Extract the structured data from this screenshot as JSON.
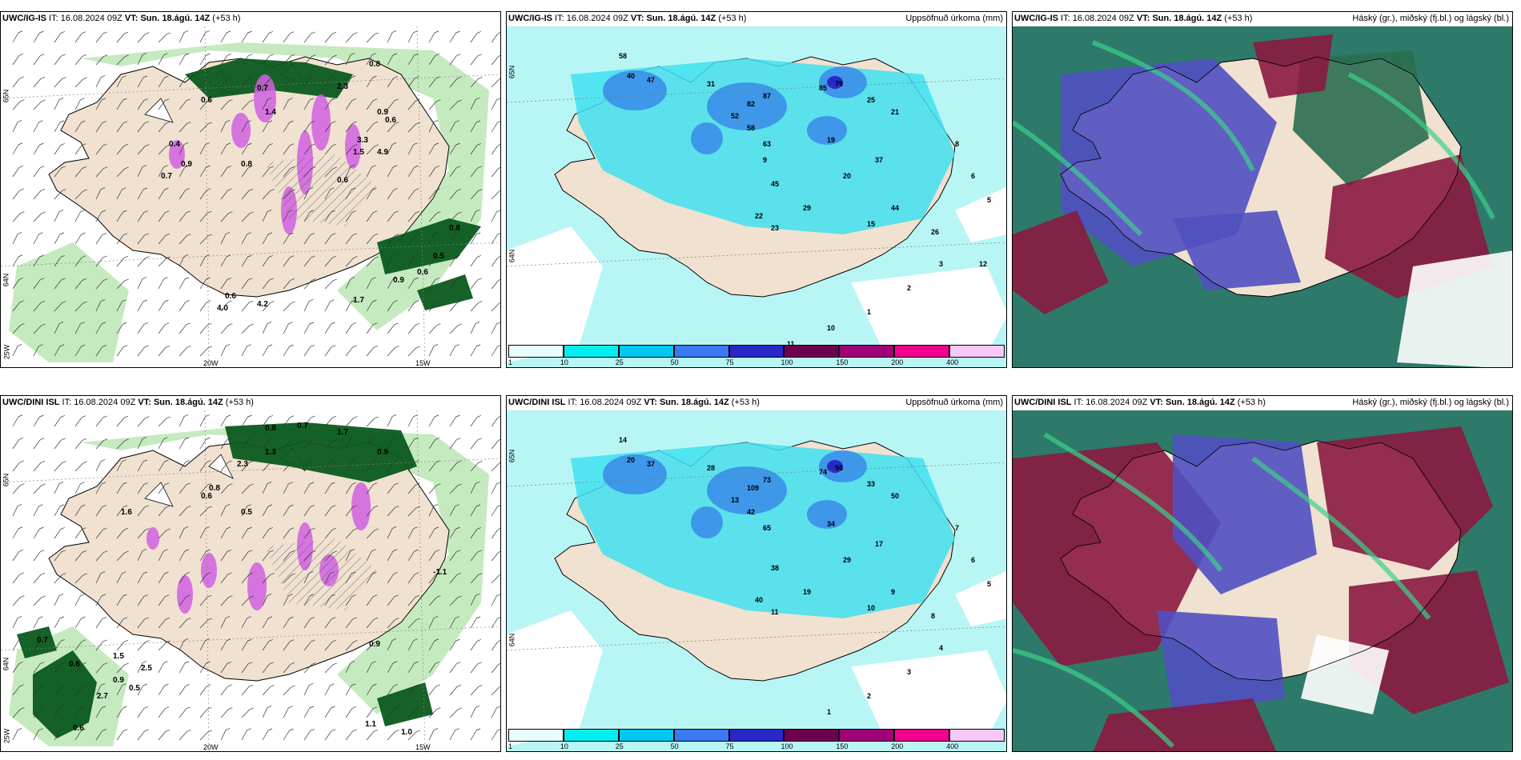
{
  "panels": [
    {
      "model": "UWC/IG-IS",
      "init_label": "IT:",
      "init_time": "16.08.2024 09Z",
      "valid_label": "VT:",
      "valid_time": "Sun. 18.ágú. 14Z",
      "lead": "(+53 h)",
      "right_title": "",
      "type": "precip-wind",
      "axis_labels": {
        "lat_top": "65N",
        "lat_bottom": "64N",
        "lon_left": "20W",
        "lon_right": "15W",
        "corner": "25W"
      },
      "values": [
        "0.8",
        "0.7",
        "0.6",
        "0.9",
        "1.4",
        "2.3",
        "3.3",
        "1.5",
        "0.6",
        "0.4",
        "0.9",
        "0.7",
        "0.8",
        "0.6",
        "0.5",
        "0.6",
        "0.9",
        "1.7",
        "4.2",
        "4.0",
        "4.9",
        "0.8",
        "0.6"
      ]
    },
    {
      "model": "UWC/IG-IS",
      "init_label": "IT:",
      "init_time": "16.08.2024 09Z",
      "valid_label": "VT:",
      "valid_time": "Sun. 18.ágú. 14Z",
      "lead": "(+53 h)",
      "right_title": "Uppsöfnuð úrkoma (mm)",
      "type": "accum",
      "axis_labels": {
        "lat_top": "65N",
        "lat_bottom": "64N"
      },
      "values": [
        "58",
        "40",
        "47",
        "31",
        "52",
        "58",
        "63",
        "87",
        "82",
        "85",
        "79",
        "25",
        "21",
        "19",
        "37",
        "20",
        "45",
        "22",
        "29",
        "23",
        "15",
        "44",
        "26",
        "8",
        "6",
        "5",
        "3",
        "2",
        "1",
        "10",
        "11",
        "9",
        "12"
      ]
    },
    {
      "model": "UWC/IG-IS",
      "init_label": "IT:",
      "init_time": "16.08.2024 09Z",
      "valid_label": "VT:",
      "valid_time": "Sun. 18.ágú. 14Z",
      "lead": "(+53 h)",
      "right_title": "Háský (gr.), miðský (fj.bl.) og lágský (bl.)",
      "type": "cloud"
    },
    {
      "model": "UWC/DINI ISL",
      "init_label": "IT:",
      "init_time": "16.08.2024 09Z",
      "valid_label": "VT:",
      "valid_time": "Sun. 18.ágú. 14Z",
      "lead": "(+53 h)",
      "right_title": "",
      "type": "precip-wind",
      "axis_labels": {
        "lat_top": "65N",
        "lat_bottom": "64N",
        "lon_left": "20W",
        "lon_right": "15W",
        "corner": "25W"
      },
      "values": [
        "0.8",
        "0.7",
        "1.7",
        "1.3",
        "0.9",
        "0.6",
        "0.5",
        "0.7",
        "0.6",
        "0.9",
        "2.5",
        "0.5",
        "2.7",
        "0.6",
        "1.5",
        "-1.1",
        "0.9",
        "1.0",
        "1.1",
        "0.8",
        "1.6",
        "2.3"
      ]
    },
    {
      "model": "UWC/DINI ISL",
      "init_label": "IT:",
      "init_time": "16.08.2024 09Z",
      "valid_label": "VT:",
      "valid_time": "Sun. 18.ágú. 14Z",
      "lead": "(+53 h)",
      "right_title": "Uppsöfnuð úrkoma (mm)",
      "type": "accum",
      "axis_labels": {
        "lat_top": "65N",
        "lat_bottom": "64N"
      },
      "values": [
        "14",
        "20",
        "37",
        "28",
        "13",
        "42",
        "65",
        "73",
        "109",
        "74",
        "56",
        "33",
        "50",
        "34",
        "17",
        "29",
        "38",
        "40",
        "19",
        "11",
        "10",
        "9",
        "8",
        "7",
        "6",
        "5",
        "4",
        "3",
        "2",
        "1"
      ]
    },
    {
      "model": "UWC/DINI ISL",
      "init_label": "IT:",
      "init_time": "16.08.2024 09Z",
      "valid_label": "VT:",
      "valid_time": "Sun. 18.ágú. 14Z",
      "lead": "(+53 h)",
      "right_title": "Háský (gr.), miðský (fj.bl.) og lágský (bl.)",
      "type": "cloud"
    }
  ],
  "colorbar": {
    "labels": [
      "1",
      "10",
      "25",
      "50",
      "75",
      "100",
      "150",
      "200",
      "400"
    ],
    "colors": [
      "#e8ffff",
      "#00f0f0",
      "#00c8f0",
      "#3c78f0",
      "#2828c8",
      "#6e0050",
      "#a00078",
      "#f0008c",
      "#f8c8f8"
    ]
  },
  "colors": {
    "land": "#f0e1d0",
    "light_green": "#bfe8b8",
    "dark_green": "#0a5a1e",
    "mid_green": "#4aa04a",
    "magenta": "#d060e0",
    "cyan_light": "#b8f6f6",
    "cyan": "#40e0f0",
    "blue": "#3a8ae8",
    "cloud_high": "#2a6e50",
    "cloud_mid": "#5050c0",
    "cloud_low": "#8a1a40",
    "cloud_bg": "#2d7a6a"
  }
}
